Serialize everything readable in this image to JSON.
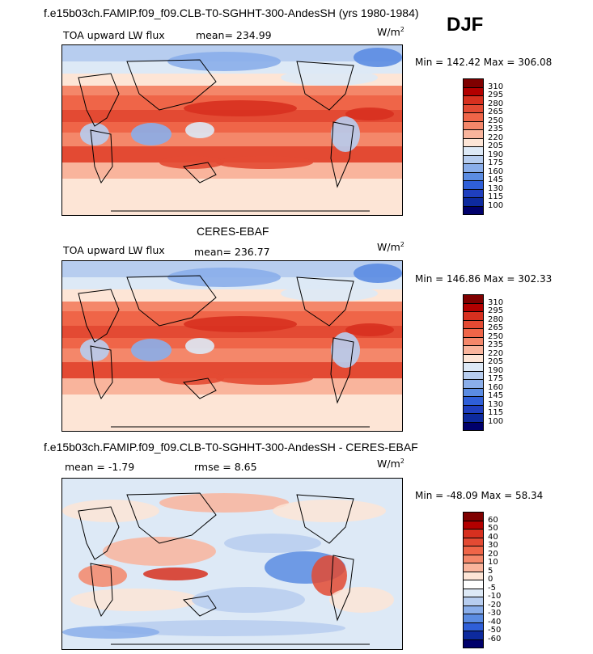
{
  "header": {
    "title": "f.e15b03ch.FAMIP.f09_f09.CLB-T0-SGHHT-300-AndesSH (yrs 1980-1984)",
    "season": "DJF"
  },
  "panels": [
    {
      "id": "model",
      "field_label": "TOA upward LW flux",
      "mean_text": "mean= 234.99",
      "units": "W/m",
      "units_exp": "2",
      "minmax_text": "Min = 142.42 Max = 306.08",
      "colorbar": [
        "310",
        "295",
        "280",
        "265",
        "250",
        "235",
        "220",
        "205",
        "190",
        "175",
        "160",
        "145",
        "130",
        "115",
        "100"
      ],
      "palette": [
        "#7f0000",
        "#b30000",
        "#d7301f",
        "#e34a33",
        "#ef6548",
        "#f4876a",
        "#f9b49c",
        "#fde5d6",
        "#dde9f6",
        "#b7cdef",
        "#8aaeea",
        "#5b8ce2",
        "#2f5fd8",
        "#1f3fbf",
        "#0d2a9e",
        "#00006b"
      ]
    },
    {
      "id": "obs",
      "heading": "CERES-EBAF",
      "field_label": "TOA upward LW flux",
      "mean_text": "mean= 236.77",
      "units": "W/m",
      "units_exp": "2",
      "minmax_text": "Min = 146.86 Max = 302.33",
      "colorbar": [
        "310",
        "295",
        "280",
        "265",
        "250",
        "235",
        "220",
        "205",
        "190",
        "175",
        "160",
        "145",
        "130",
        "115",
        "100"
      ],
      "palette": [
        "#7f0000",
        "#b30000",
        "#d7301f",
        "#e34a33",
        "#ef6548",
        "#f4876a",
        "#f9b49c",
        "#fde5d6",
        "#dde9f6",
        "#b7cdef",
        "#8aaeea",
        "#5b8ce2",
        "#2f5fd8",
        "#1f3fbf",
        "#0d2a9e",
        "#00006b"
      ]
    },
    {
      "id": "diff",
      "heading": "f.e15b03ch.FAMIP.f09_f09.CLB-T0-SGHHT-300-AndesSH - CERES-EBAF",
      "mean_text": "mean =   -1.79",
      "rmse_text": "rmse =    8.65",
      "units": "W/m",
      "units_exp": "2",
      "minmax_text": "Min = -48.09 Max =  58.34",
      "colorbar": [
        "60",
        "50",
        "40",
        "30",
        "20",
        "10",
        "5",
        "0",
        "-5",
        "-10",
        "-20",
        "-30",
        "-40",
        "-50",
        "-60"
      ],
      "palette": [
        "#7f0000",
        "#b30000",
        "#d7301f",
        "#e34a33",
        "#ef6548",
        "#f4876a",
        "#f9b49c",
        "#fde5d6",
        "#ffffff",
        "#dde9f6",
        "#b7cdef",
        "#8aaeea",
        "#5b8ce2",
        "#2f5fd8",
        "#0d2a9e",
        "#00006b"
      ]
    }
  ],
  "chart_data": [
    {
      "type": "heatmap",
      "title": "TOA upward LW flux",
      "units": "W/m2",
      "mean": 234.99,
      "min": 142.42,
      "max": 306.08,
      "levels": [
        100,
        115,
        130,
        145,
        160,
        175,
        190,
        205,
        220,
        235,
        250,
        265,
        280,
        295,
        310
      ]
    },
    {
      "type": "heatmap",
      "title": "CERES-EBAF TOA upward LW flux",
      "units": "W/m2",
      "mean": 236.77,
      "min": 146.86,
      "max": 302.33,
      "levels": [
        100,
        115,
        130,
        145,
        160,
        175,
        190,
        205,
        220,
        235,
        250,
        265,
        280,
        295,
        310
      ]
    },
    {
      "type": "heatmap",
      "title": "f.e15b03ch.FAMIP.f09_f09.CLB-T0-SGHHT-300-AndesSH - CERES-EBAF",
      "units": "W/m2",
      "mean": -1.79,
      "rmse": 8.65,
      "min": -48.09,
      "max": 58.34,
      "levels": [
        -60,
        -50,
        -40,
        -30,
        -20,
        -10,
        -5,
        0,
        5,
        10,
        20,
        30,
        40,
        50,
        60
      ]
    }
  ]
}
